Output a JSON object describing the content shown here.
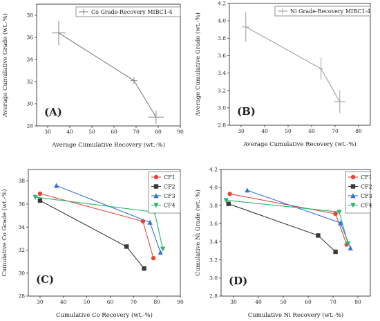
{
  "chart_data": [
    {
      "panel_label": "(A)",
      "type": "line",
      "xlabel": "Average Cumulative Recovery (wt.-%)",
      "ylabel": "Average Cumulative Grade (wt.-%)",
      "xlim": [
        25,
        90
      ],
      "ylim": [
        28,
        39
      ],
      "xticks": [
        "30",
        "40",
        "50",
        "60",
        "70",
        "80",
        "90"
      ],
      "yticks": [
        "28",
        "30",
        "32",
        "34",
        "36",
        "38"
      ],
      "grid": false,
      "legend_position": "top-right",
      "series": [
        {
          "name": "Co Grade-Recovery MIBC1-4",
          "color": "#808080",
          "marker": "errorbar-cross",
          "points": [
            {
              "x": 35,
              "y": 36.4,
              "xerr": 3,
              "yerr": 1.1
            },
            {
              "x": 69,
              "y": 32.1,
              "xerr": 1.5,
              "yerr": 0.3
            },
            {
              "x": 79,
              "y": 28.8,
              "xerr": 3.5,
              "yerr": 0.6
            }
          ]
        }
      ]
    },
    {
      "panel_label": "(B)",
      "type": "line",
      "xlabel": "Average Cumulative Recovery (wt.-%)",
      "ylabel": "Average Cumulative Grade (wt.-%)",
      "xlim": [
        25,
        85
      ],
      "ylim": [
        2.8,
        4.2
      ],
      "xticks": [
        "30",
        "40",
        "50",
        "60",
        "70",
        "80"
      ],
      "yticks": [
        "2.8",
        "3.0",
        "3.2",
        "3.4",
        "3.6",
        "3.8",
        "4.0",
        "4.2"
      ],
      "grid": false,
      "legend_position": "top-right",
      "series": [
        {
          "name": "Ni Grade-Recovery MIBC1-4",
          "color": "#a0a0a0",
          "marker": "errorbar-cross",
          "points": [
            {
              "x": 32,
              "y": 3.93,
              "xerr": 1.5,
              "yerr": 0.17
            },
            {
              "x": 64,
              "y": 3.45,
              "xerr": 0.8,
              "yerr": 0.13
            },
            {
              "x": 72,
              "y": 3.07,
              "xerr": 2.5,
              "yerr": 0.13
            }
          ]
        }
      ]
    },
    {
      "panel_label": "(C)",
      "type": "line",
      "xlabel": "Cumulative Co Recovery (wt.-%)",
      "ylabel": "Cumulative Co Grade (wt.-%)",
      "xlim": [
        25,
        90
      ],
      "ylim": [
        28,
        39
      ],
      "xticks": [
        "30",
        "40",
        "50",
        "60",
        "70",
        "80",
        "90"
      ],
      "yticks": [
        "28",
        "30",
        "32",
        "34",
        "36",
        "38"
      ],
      "grid": false,
      "legend_position": "top-right",
      "series": [
        {
          "name": "CF1",
          "color": "#e8433a",
          "marker": "circle",
          "points": [
            {
              "x": 30,
              "y": 36.9
            },
            {
              "x": 74,
              "y": 34.5
            },
            {
              "x": 78.5,
              "y": 31.3
            }
          ]
        },
        {
          "name": "CF2",
          "color": "#3a3a3a",
          "marker": "square",
          "points": [
            {
              "x": 30,
              "y": 36.3
            },
            {
              "x": 67,
              "y": 32.3
            },
            {
              "x": 74.5,
              "y": 30.4
            }
          ]
        },
        {
          "name": "CF3",
          "color": "#2f6fe0",
          "marker": "triangle-up",
          "points": [
            {
              "x": 37,
              "y": 37.6
            },
            {
              "x": 77,
              "y": 34.4
            },
            {
              "x": 81.5,
              "y": 31.8
            }
          ]
        },
        {
          "name": "CF4",
          "color": "#27b566",
          "marker": "triangle-down",
          "points": [
            {
              "x": 28,
              "y": 36.6
            },
            {
              "x": 79,
              "y": 35.3
            },
            {
              "x": 82.5,
              "y": 32.1
            }
          ]
        }
      ]
    },
    {
      "panel_label": "(D)",
      "type": "line",
      "xlabel": "Cumulative Ni Recovery (wt.-%)",
      "ylabel": "Cumulative Ni Grade (wt.-%)",
      "xlim": [
        25,
        85
      ],
      "ylim": [
        2.8,
        4.2
      ],
      "xticks": [
        "30",
        "40",
        "50",
        "60",
        "70",
        "80"
      ],
      "yticks": [
        "2.8",
        "3.0",
        "3.2",
        "3.4",
        "3.6",
        "3.8",
        "4.0",
        "4.2"
      ],
      "grid": false,
      "legend_position": "top-right",
      "series": [
        {
          "name": "CF1",
          "color": "#e8433a",
          "marker": "circle",
          "points": [
            {
              "x": 28.5,
              "y": 3.93
            },
            {
              "x": 71,
              "y": 3.71
            },
            {
              "x": 75.5,
              "y": 3.37
            }
          ]
        },
        {
          "name": "CF2",
          "color": "#3a3a3a",
          "marker": "square",
          "points": [
            {
              "x": 28,
              "y": 3.82
            },
            {
              "x": 64,
              "y": 3.47
            },
            {
              "x": 71,
              "y": 3.29
            }
          ]
        },
        {
          "name": "CF3",
          "color": "#2f6fe0",
          "marker": "triangle-up",
          "points": [
            {
              "x": 35.5,
              "y": 3.97
            },
            {
              "x": 73,
              "y": 3.61
            },
            {
              "x": 77,
              "y": 3.33
            }
          ]
        },
        {
          "name": "CF4",
          "color": "#27b566",
          "marker": "triangle-down",
          "points": [
            {
              "x": 27,
              "y": 3.86
            },
            {
              "x": 72.5,
              "y": 3.73
            },
            {
              "x": 76,
              "y": 3.38
            }
          ]
        }
      ]
    }
  ]
}
